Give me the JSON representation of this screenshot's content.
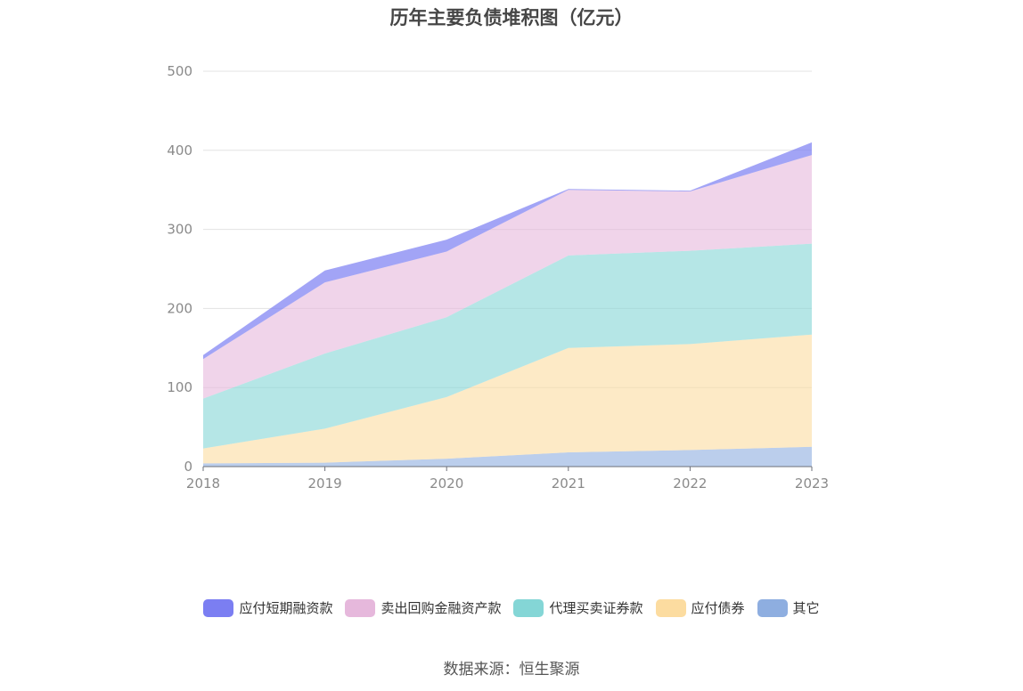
{
  "chart_data": {
    "type": "area",
    "stacked": true,
    "title": "历年主要负债堆积图（亿元）",
    "categories": [
      "2018",
      "2019",
      "2020",
      "2021",
      "2022",
      "2023"
    ],
    "ylim": [
      0,
      500
    ],
    "yticks": [
      0,
      100,
      200,
      300,
      400,
      500
    ],
    "grid": true,
    "legend_position": "bottom",
    "series": [
      {
        "name": "其它",
        "color": "#8eaee0",
        "values": [
          4,
          5,
          10,
          18,
          21,
          25
        ]
      },
      {
        "name": "应付债券",
        "color": "#fcdca0",
        "values": [
          19,
          43,
          78,
          132,
          134,
          142
        ]
      },
      {
        "name": "代理买卖证券款",
        "color": "#84d6d6",
        "values": [
          63,
          95,
          101,
          117,
          118,
          115
        ]
      },
      {
        "name": "卖出回购金融资产款",
        "color": "#e6b8dc",
        "values": [
          50,
          90,
          83,
          83,
          75,
          112
        ]
      },
      {
        "name": "应付短期融资款",
        "color": "#7b7ef2",
        "values": [
          5,
          15,
          15,
          1,
          1,
          16
        ]
      }
    ]
  },
  "legend_order": [
    4,
    3,
    2,
    1,
    0
  ],
  "source_text": "数据来源：恒生聚源"
}
